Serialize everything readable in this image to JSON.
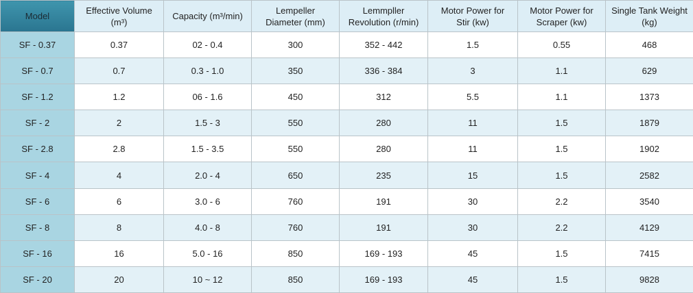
{
  "table": {
    "header": [
      "Model",
      "Effective Volume\n(m³)",
      "Capacity (m³/min)",
      "Lempeller\nDiameter (mm)",
      "Lemmpller\nRevolution (r/min)",
      "Motor Power for\nStir (kw)",
      "Motor Power for\nScraper (kw)",
      "Single Tank Weight\n(kg)"
    ],
    "rows": [
      [
        "SF - 0.37",
        "0.37",
        "02 - 0.4",
        "300",
        "352 - 442",
        "1.5",
        "0.55",
        "468"
      ],
      [
        "SF - 0.7",
        "0.7",
        "0.3 - 1.0",
        "350",
        "336 - 384",
        "3",
        "1.1",
        "629"
      ],
      [
        "SF - 1.2",
        "1.2",
        "06 - 1.6",
        "450",
        "312",
        "5.5",
        "1.1",
        "1373"
      ],
      [
        "SF - 2",
        "2",
        "1.5 - 3",
        "550",
        "280",
        "11",
        "1.5",
        "1879"
      ],
      [
        "SF - 2.8",
        "2.8",
        "1.5 - 3.5",
        "550",
        "280",
        "11",
        "1.5",
        "1902"
      ],
      [
        "SF - 4",
        "4",
        "2.0 - 4",
        "650",
        "235",
        "15",
        "1.5",
        "2582"
      ],
      [
        "SF - 6",
        "6",
        "3.0 - 6",
        "760",
        "191",
        "30",
        "2.2",
        "3540"
      ],
      [
        "SF - 8",
        "8",
        "4.0 - 8",
        "760",
        "191",
        "30",
        "2.2",
        "4129"
      ],
      [
        "SF - 16",
        "16",
        "5.0 - 16",
        "850",
        "169 - 193",
        "45",
        "1.5",
        "7415"
      ],
      [
        "SF - 20",
        "20",
        "10 ~ 12",
        "850",
        "169 - 193",
        "45",
        "1.5",
        "9828"
      ]
    ]
  }
}
